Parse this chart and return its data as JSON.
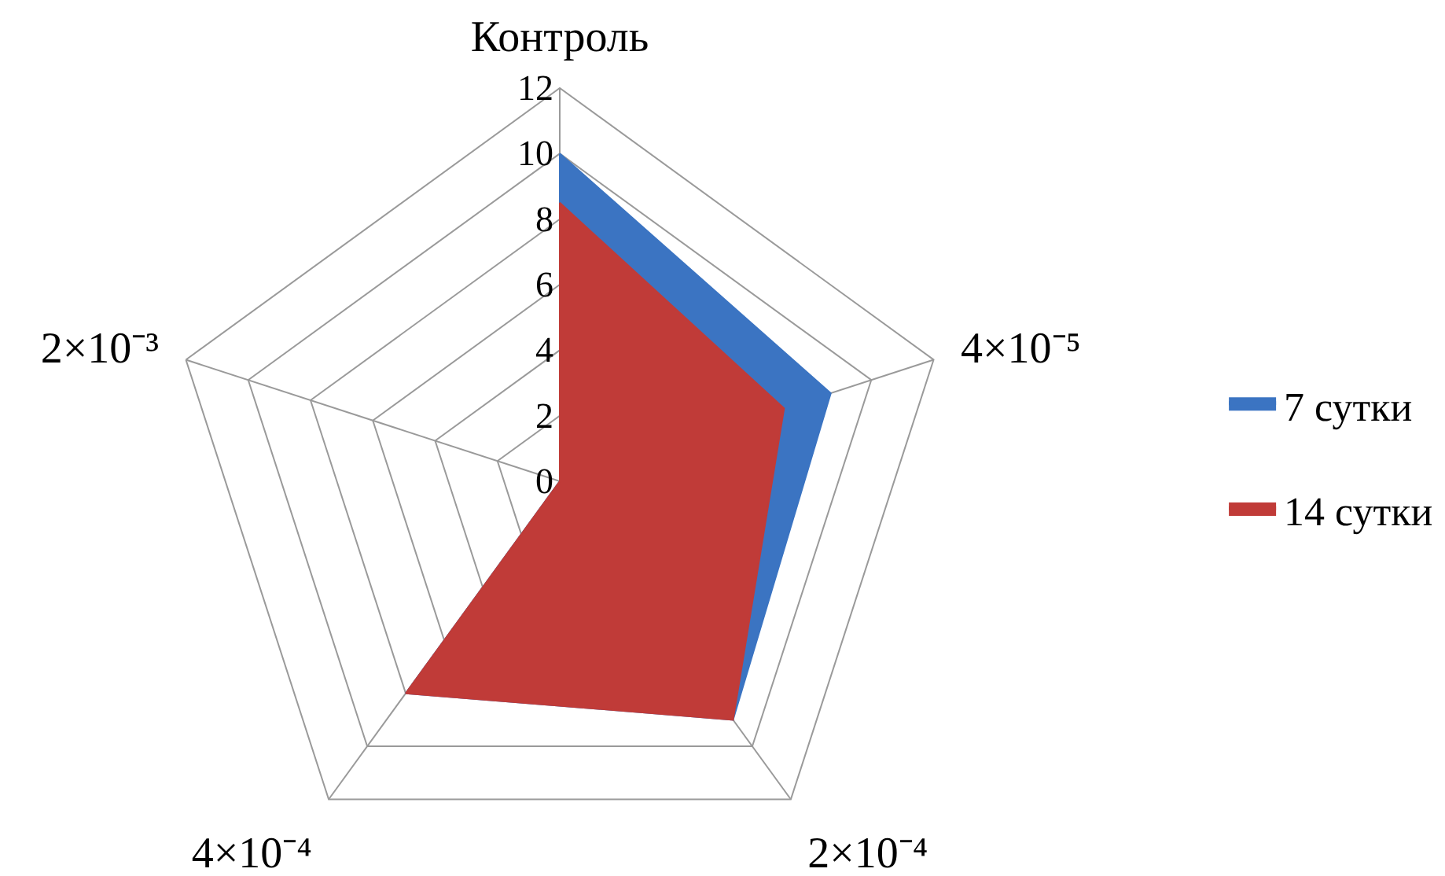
{
  "chart_data": {
    "type": "radar",
    "categories": [
      "Контроль",
      "4×10⁻⁵",
      "2×10⁻⁴",
      "4×10⁻⁴",
      "2×10⁻³"
    ],
    "series": [
      {
        "name": "7 сутки",
        "color": "#3b74c2",
        "values": [
          10,
          8.7,
          9,
          8,
          0
        ]
      },
      {
        "name": "14 сутки",
        "color": "#c03b38",
        "values": [
          8.5,
          7.2,
          9,
          8,
          0
        ]
      }
    ],
    "ylim": [
      0,
      12
    ],
    "yticks": [
      0,
      2,
      4,
      6,
      8,
      10,
      12
    ],
    "grid": true,
    "legend": "right",
    "marker": "none"
  }
}
